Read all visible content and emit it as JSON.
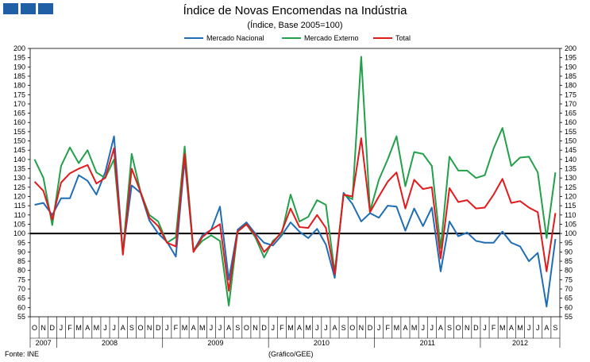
{
  "header": {
    "logo_color": "#1f5fa6"
  },
  "chart_data": {
    "type": "line",
    "title": "Índice de Novas Encomendas na Indústria",
    "subtitle": "(Índice, Base 2005=100)",
    "ylim": [
      55,
      200
    ],
    "ystep": 5,
    "reference_line": 100,
    "x": [
      "O",
      "N",
      "D",
      "J",
      "F",
      "M",
      "A",
      "M",
      "J",
      "J",
      "A",
      "S",
      "O",
      "N",
      "D",
      "J",
      "F",
      "M",
      "A",
      "M",
      "J",
      "J",
      "A",
      "S",
      "O",
      "N",
      "D",
      "J",
      "F",
      "M",
      "A",
      "M",
      "J",
      "J",
      "A",
      "S",
      "O",
      "N",
      "D",
      "J",
      "F",
      "M",
      "A",
      "M",
      "J",
      "J",
      "A",
      "S",
      "O",
      "N",
      "D",
      "J",
      "F",
      "M",
      "A",
      "M",
      "J",
      "J",
      "A",
      "S"
    ],
    "years": [
      {
        "label": "2007",
        "start": 0,
        "count": 3
      },
      {
        "label": "2008",
        "start": 3,
        "count": 12
      },
      {
        "label": "2009",
        "start": 15,
        "count": 12
      },
      {
        "label": "2010",
        "start": 27,
        "count": 12
      },
      {
        "label": "2011",
        "start": 39,
        "count": 12
      },
      {
        "label": "2012",
        "start": 51,
        "count": 9
      }
    ],
    "series": [
      {
        "name": "Mercado Nacional",
        "color": "#1f6db5",
        "values": [
          115.5,
          116.5,
          110,
          119,
          119,
          131.5,
          128.5,
          121,
          133,
          152.5,
          90,
          126,
          122,
          107,
          100,
          95.5,
          87.5,
          140,
          90.5,
          99,
          102,
          114.5,
          75,
          102,
          106,
          100,
          95,
          93.5,
          99,
          106,
          101,
          97.5,
          102.5,
          94,
          76,
          122,
          116,
          106.5,
          111,
          108.5,
          115,
          114.5,
          101.5,
          113.5,
          104,
          114,
          79.5,
          106.5,
          98.5,
          100.5,
          96,
          95,
          95,
          101,
          95,
          93,
          85,
          89.5,
          60.5,
          97
        ]
      },
      {
        "name": "Mercado Externo",
        "color": "#23a04a",
        "values": [
          140,
          130,
          104.5,
          136.5,
          146.5,
          138,
          145,
          133,
          130,
          140,
          90,
          143,
          122.5,
          110,
          106.5,
          95,
          98,
          147,
          90.5,
          96,
          99,
          96,
          61,
          101,
          105,
          98,
          87,
          96,
          100,
          121,
          106.5,
          109,
          118,
          115.5,
          79,
          121,
          118.5,
          195.5,
          112,
          129,
          140,
          152.5,
          125.5,
          144,
          143,
          136.5,
          92,
          141.5,
          134,
          134,
          130,
          131.5,
          146,
          157,
          136.5,
          141,
          141.5,
          133,
          97.5,
          133
        ]
      },
      {
        "name": "Total",
        "color": "#e31a1c",
        "values": [
          128,
          123,
          107.5,
          127.5,
          132.5,
          135,
          137,
          127,
          130,
          146,
          88.5,
          135,
          122.5,
          108.5,
          104,
          95,
          93,
          143,
          90,
          98,
          102,
          105,
          69,
          101,
          105,
          99,
          90,
          95,
          101,
          113.5,
          103.5,
          103,
          110,
          103,
          78,
          121,
          120,
          151.5,
          111.5,
          120,
          128,
          133,
          113.5,
          129,
          124,
          125,
          86.5,
          124.5,
          117,
          118,
          113.5,
          114,
          121,
          129.5,
          116.5,
          117.5,
          114,
          111.5,
          79.5,
          111
        ]
      }
    ]
  },
  "footer": {
    "source": "Fonte: INE",
    "credit": "(Gráfico/GEE)"
  }
}
